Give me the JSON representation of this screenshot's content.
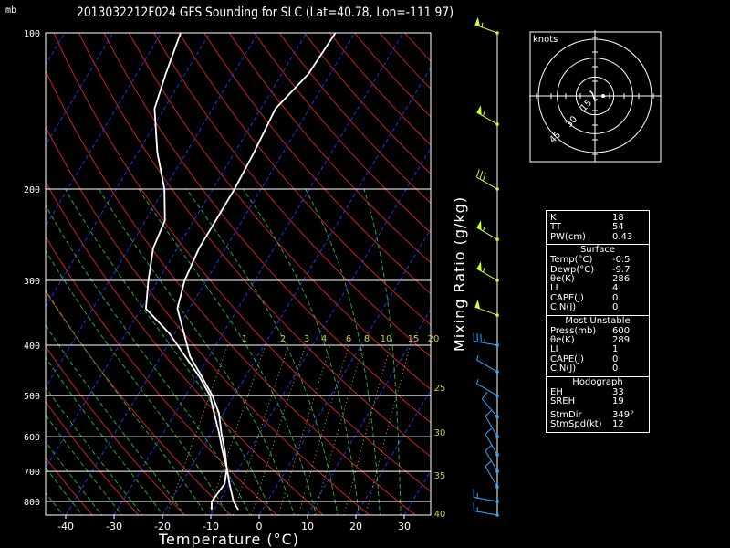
{
  "title": "2013032212F024 GFS Sounding for SLC (Lat=40.78, Lon=-111.97)",
  "pressure_unit": "mb",
  "colors": {
    "background": "#000000",
    "isotherm": "#3333ff",
    "dry_adiabat": "#dd2222",
    "moist_adiabat": "#22bb44",
    "mixing_ratio": "#cccc33",
    "wind": "#ccff33",
    "wind_low": "#33aaff",
    "profile": "#ffffff"
  },
  "chart_data": {
    "type": "line",
    "xlabel": "Temperature (°C)",
    "ylabel": "Mixing Ratio (g/kg)",
    "xlim": [
      -45,
      35
    ],
    "ylim": [
      850,
      100
    ],
    "y_scale": "log",
    "x_ticks": [
      -40,
      -30,
      -20,
      -10,
      0,
      10,
      20,
      30
    ],
    "y_ticks": [
      100,
      200,
      300,
      400,
      500,
      600,
      700,
      800
    ],
    "mixing_ratio_labels": [
      "1",
      "2",
      "3",
      "4",
      "6",
      "8",
      "10",
      "15",
      "20"
    ],
    "right_numbers": [
      "25",
      "30",
      "35",
      "40"
    ],
    "series": [
      {
        "color": "white",
        "pressure": [
          830,
          800,
          740,
          690,
          640,
          590,
          540,
          500,
          460,
          420,
          380,
          340,
          300,
          260,
          230,
          200,
          170,
          140,
          120,
          100
        ],
        "values": [
          -10.5,
          -11.5,
          -11,
          -12.5,
          -15,
          -18,
          -21,
          -24.5,
          -29,
          -34,
          -38,
          -42.5,
          -44.5,
          -45.5,
          -45.5,
          -45.5,
          -46,
          -47,
          -44.5,
          -44
        ]
      },
      {
        "color": "white",
        "pressure": [
          830,
          800,
          740,
          690,
          640,
          590,
          540,
          500,
          460,
          420,
          380,
          340,
          300,
          260,
          230,
          200,
          170,
          140,
          120,
          100
        ],
        "values": [
          -5,
          -7,
          -10,
          -12.5,
          -15.5,
          -18.5,
          -22,
          -25,
          -29.5,
          -35,
          -41,
          -49,
          -52,
          -55,
          -56,
          -60,
          -66,
          -72,
          -74,
          -76
        ]
      }
    ],
    "wind_barbs": [
      {
        "pressure": 100,
        "dir": 290,
        "spd": 55
      },
      {
        "pressure": 150,
        "dir": 300,
        "spd": 55
      },
      {
        "pressure": 200,
        "dir": 300,
        "spd": 30
      },
      {
        "pressure": 250,
        "dir": 300,
        "spd": 55
      },
      {
        "pressure": 300,
        "dir": 300,
        "spd": 55
      },
      {
        "pressure": 350,
        "dir": 290,
        "spd": 50
      },
      {
        "pressure": 400,
        "dir": 280,
        "spd": 35
      },
      {
        "pressure": 450,
        "dir": 300,
        "spd": 5
      },
      {
        "pressure": 500,
        "dir": 300,
        "spd": 5
      },
      {
        "pressure": 550,
        "dir": 320,
        "spd": 10
      },
      {
        "pressure": 600,
        "dir": 330,
        "spd": 10
      },
      {
        "pressure": 650,
        "dir": 330,
        "spd": 10
      },
      {
        "pressure": 700,
        "dir": 330,
        "spd": 10
      },
      {
        "pressure": 750,
        "dir": 330,
        "spd": 10
      },
      {
        "pressure": 800,
        "dir": 280,
        "spd": 15
      },
      {
        "pressure": 850,
        "dir": 280,
        "spd": 15
      }
    ],
    "hodograph": {
      "unit": "knots",
      "ring_labels": [
        "15",
        "30",
        "45"
      ],
      "points": [
        [
          -4,
          4
        ],
        [
          -3,
          3
        ],
        [
          -2,
          2
        ],
        [
          -1,
          -1
        ],
        [
          0,
          -4
        ],
        [
          1,
          -3
        ],
        [
          2,
          -3
        ],
        [
          2,
          -3
        ]
      ]
    }
  },
  "indices": {
    "top": [
      {
        "k": "K",
        "v": "18"
      },
      {
        "k": "TT",
        "v": "54"
      },
      {
        "k": "PW(cm)",
        "v": "0.43"
      }
    ],
    "surface": {
      "header": "Surface",
      "rows": [
        {
          "k": "Temp(°C)",
          "v": "-0.5"
        },
        {
          "k": "Dewp(°C)",
          "v": "-9.7"
        },
        {
          "k": "θe(K)",
          "v": "286"
        },
        {
          "k": "LI",
          "v": "4"
        },
        {
          "k": "CAPE(J)",
          "v": "0"
        },
        {
          "k": "CIN(J)",
          "v": "0"
        }
      ]
    },
    "most_unstable": {
      "header": "Most Unstable",
      "rows": [
        {
          "k": "Press(mb)",
          "v": "600"
        },
        {
          "k": "θe(K)",
          "v": "289"
        },
        {
          "k": "LI",
          "v": "1"
        },
        {
          "k": "CAPE(J)",
          "v": "0"
        },
        {
          "k": "CIN(J)",
          "v": "0"
        }
      ]
    },
    "hodograph": {
      "header": "Hodograph",
      "rows": [
        {
          "k": "EH",
          "v": "33"
        },
        {
          "k": "SREH",
          "v": "19"
        },
        {
          "k": "StmDir",
          "v": "349°"
        },
        {
          "k": "StmSpd(kt)",
          "v": "12"
        }
      ]
    }
  }
}
